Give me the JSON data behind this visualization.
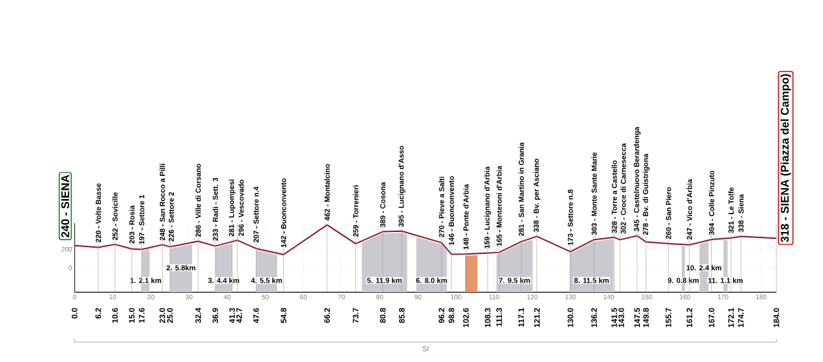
{
  "chart_data": {
    "type": "line",
    "x": [
      0.0,
      6.2,
      10.6,
      15.0,
      17.6,
      23.0,
      25.0,
      32.4,
      36.9,
      41.3,
      42.7,
      47.6,
      54.8,
      66.2,
      73.7,
      80.8,
      85.8,
      96.2,
      98.8,
      102.6,
      108.3,
      111.3,
      117.1,
      121.2,
      130.0,
      136.2,
      141.5,
      143.0,
      147.5,
      149.8,
      155.7,
      161.2,
      167.0,
      172.1,
      174.7,
      184.0
    ],
    "values": [
      240,
      220,
      252,
      203,
      197,
      248,
      226,
      286,
      233,
      281,
      296,
      207,
      142,
      462,
      259,
      389,
      395,
      270,
      146,
      148,
      159,
      165,
      281,
      338,
      173,
      303,
      328,
      302,
      345,
      278,
      260,
      247,
      304,
      321,
      338,
      318
    ],
    "color": "#8b1a2e",
    "value_labels": [
      "240 - SIENA",
      "220 - Volte Basse",
      "252 - Sovicille",
      "203 - Rosia",
      "197 - Settore 1",
      "248 - San Rocco a Pilli",
      "226 - Settore 2",
      "286 - Ville di Corsano",
      "233 - Radi - Sett. 3",
      "281 - Lupompesi",
      "296 - Vescovado",
      "207 - Settore n.4",
      "142 - Buonconvento",
      "462 - Montalcino",
      "259 - Torrenieri",
      "389 - Cosona",
      "395 - Lucignano d'Asso",
      "270 - Pieve a Salti",
      "146 - Buonconvento",
      "148 - Ponte d'Arbia",
      "159 - Lucignano d'Arbia",
      "165 - Monteroni d'Arbia",
      "281 - San Martino in Grania",
      "338 - Bv. per Asciano",
      "173 - Settore n.8",
      "303 - Monte Sante Marie",
      "328 - Torre a Castello",
      "302 - Croce di Carnesecca",
      "345 - Castelnuovo Berardenga",
      "278 - Bv. di Guistrigona",
      "260 - San Piero",
      "247 - Vico d'Arbia",
      "304 - Colle Pinzuto",
      "321 - Le Tolfe",
      "338 - Siena",
      "318 - SIENA (Piazza del Campo)"
    ],
    "xlim": [
      0,
      184
    ],
    "ylim": [
      -265,
      480
    ],
    "xticks": [
      0,
      10,
      20,
      30,
      40,
      50,
      60,
      70,
      80,
      90,
      100,
      110,
      120,
      130,
      140,
      150,
      160,
      170,
      180
    ],
    "yticks": [
      0,
      200
    ],
    "x2lim": [
      0,
      184
    ],
    "x2ticks": [
      {
        "value": 0,
        "label": "0.0"
      },
      6.2,
      10.6,
      {
        "value": 15,
        "label": "15.0"
      },
      17.6,
      {
        "value": 23,
        "label": "23.0"
      },
      {
        "value": 25,
        "label": "25.0"
      },
      32.4,
      36.9,
      41.3,
      42.7,
      47.6,
      54.8,
      66.2,
      73.7,
      80.8,
      85.8,
      96.2,
      98.8,
      102.6,
      108.3,
      111.3,
      117.1,
      121.2,
      {
        "value": 130,
        "label": "130.0"
      },
      136.2,
      141.5,
      {
        "value": 143,
        "label": "143.0"
      },
      147.5,
      149.8,
      155.7,
      161.2,
      {
        "value": 167,
        "label": "167.0"
      },
      172.1,
      174.7,
      {
        "value": 184,
        "label": "184.0"
      }
    ],
    "grid": true,
    "bands": [
      {
        "axis": "x",
        "from": 17.6,
        "to": 19.7,
        "label": "1. 2.1 km",
        "color": "#c9c9cf"
      },
      {
        "axis": "x",
        "from": 25.0,
        "to": 30.8,
        "label": "2. 5.8km",
        "color": "#c9c9cf"
      },
      {
        "axis": "x",
        "from": 36.9,
        "to": 41.3,
        "label": "3. 4.4 km",
        "color": "#c9c9cf"
      },
      {
        "axis": "x",
        "from": 47.6,
        "to": 53.1,
        "label": "4. 5.5 km",
        "color": "#c9c9cf"
      },
      {
        "axis": "x",
        "from": 75.3,
        "to": 87.2,
        "label": "5. 11.9 km",
        "color": "#c9c9cf"
      },
      {
        "axis": "x",
        "from": 89.6,
        "to": 97.6,
        "label": "6. 8.0 km",
        "color": "#c9c9cf"
      },
      {
        "axis": "x",
        "from": 102.4,
        "to": 105.6,
        "color": "#e8956a"
      },
      {
        "axis": "x",
        "from": 110.6,
        "to": 120.1,
        "label": "7. 9.5 km",
        "color": "#c9c9cf"
      },
      {
        "axis": "x",
        "from": 129.8,
        "to": 141.3,
        "label": "8. 11.5 km",
        "color": "#c9c9cf"
      },
      {
        "axis": "x",
        "from": 159.2,
        "to": 160.0,
        "label": "9. 0.8 km",
        "color": "#c9c9cf"
      },
      {
        "axis": "x",
        "from": 163.8,
        "to": 166.2,
        "label": "10. 2.4 km",
        "color": "#c9c9cf"
      },
      {
        "axis": "x",
        "from": 170.1,
        "to": 171.2,
        "label": "11. 1.1 km",
        "color": "#c9c9cf"
      }
    ],
    "annotations": [
      "SI"
    ]
  }
}
